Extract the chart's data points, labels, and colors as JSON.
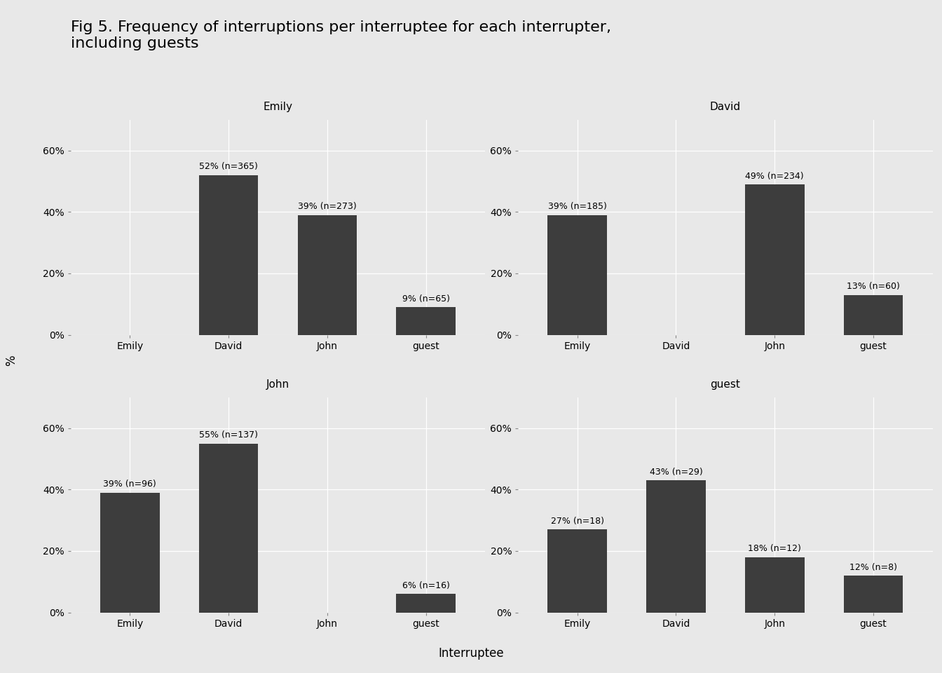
{
  "title": "Fig 5. Frequency of interruptions per interruptee for each interrupter,\nincluding guests",
  "title_fontsize": 16,
  "xlabel": "Interruptee",
  "ylabel": "%",
  "bar_color": "#3d3d3d",
  "background_figure": "#e8e8e8",
  "background_panel": "#e8e8e8",
  "strip_background": "#d3d3d3",
  "grid_color": "#ffffff",
  "panels": [
    {
      "title": "Emily",
      "bars": [
        {
          "cat": "David",
          "pct": 52,
          "n": 365
        },
        {
          "cat": "John",
          "pct": 39,
          "n": 273
        },
        {
          "cat": "guest",
          "pct": 9,
          "n": 65
        }
      ]
    },
    {
      "title": "David",
      "bars": [
        {
          "cat": "Emily",
          "pct": 39,
          "n": 185
        },
        {
          "cat": "John",
          "pct": 49,
          "n": 234
        },
        {
          "cat": "guest",
          "pct": 13,
          "n": 60
        }
      ]
    },
    {
      "title": "John",
      "bars": [
        {
          "cat": "Emily",
          "pct": 39,
          "n": 96
        },
        {
          "cat": "David",
          "pct": 55,
          "n": 137
        },
        {
          "cat": "guest",
          "pct": 6,
          "n": 16
        }
      ]
    },
    {
      "title": "guest",
      "bars": [
        {
          "cat": "Emily",
          "pct": 27,
          "n": 18
        },
        {
          "cat": "David",
          "pct": 43,
          "n": 29
        },
        {
          "cat": "John",
          "pct": 18,
          "n": 12
        },
        {
          "cat": "guest",
          "pct": 12,
          "n": 8
        }
      ]
    }
  ],
  "ylim": [
    0,
    70
  ],
  "yticks": [
    0,
    20,
    40,
    60
  ],
  "ytick_labels": [
    "0%",
    "20%",
    "40%",
    "60%"
  ],
  "all_categories": [
    "Emily",
    "David",
    "John",
    "guest"
  ]
}
